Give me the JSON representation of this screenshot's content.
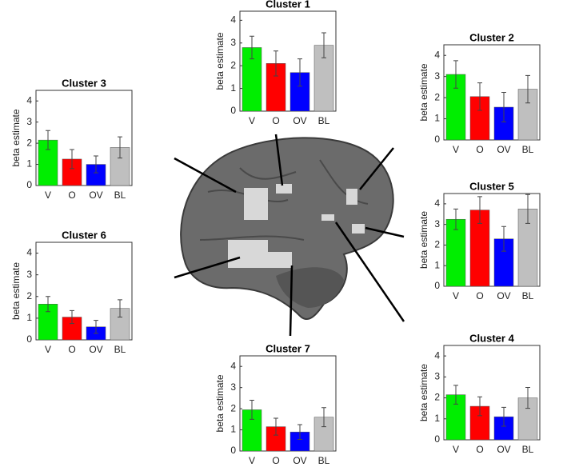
{
  "chart_data": [
    {
      "type": "bar",
      "title": "Cluster 1",
      "ylabel": "beta estimate",
      "categories": [
        "V",
        "O",
        "OV",
        "BL"
      ],
      "values": [
        2.8,
        2.1,
        1.7,
        2.9
      ],
      "errors": [
        0.5,
        0.55,
        0.6,
        0.55
      ],
      "colors": [
        "#00ee00",
        "#ff0000",
        "#0000ff",
        "#bfbfbf"
      ],
      "ylim": [
        0,
        4.4
      ],
      "yticks": [
        0,
        1,
        2,
        3,
        4
      ]
    },
    {
      "type": "bar",
      "title": "Cluster 2",
      "ylabel": "beta estimate",
      "categories": [
        "V",
        "O",
        "OV",
        "BL"
      ],
      "values": [
        3.1,
        2.05,
        1.55,
        2.4
      ],
      "errors": [
        0.65,
        0.65,
        0.7,
        0.65
      ],
      "colors": [
        "#00ee00",
        "#ff0000",
        "#0000ff",
        "#bfbfbf"
      ],
      "ylim": [
        0,
        4.5
      ],
      "yticks": [
        0,
        1,
        2,
        3,
        4
      ]
    },
    {
      "type": "bar",
      "title": "Cluster 3",
      "ylabel": "beta estimate",
      "categories": [
        "V",
        "O",
        "OV",
        "BL"
      ],
      "values": [
        2.15,
        1.25,
        1.0,
        1.8
      ],
      "errors": [
        0.45,
        0.45,
        0.4,
        0.5
      ],
      "colors": [
        "#00ee00",
        "#ff0000",
        "#0000ff",
        "#bfbfbf"
      ],
      "ylim": [
        0,
        4.5
      ],
      "yticks": [
        0,
        1,
        2,
        3,
        4
      ]
    },
    {
      "type": "bar",
      "title": "Cluster 6",
      "ylabel": "beta estimate",
      "categories": [
        "V",
        "O",
        "OV",
        "BL"
      ],
      "values": [
        1.65,
        1.05,
        0.6,
        1.45
      ],
      "errors": [
        0.35,
        0.3,
        0.3,
        0.4
      ],
      "colors": [
        "#00ee00",
        "#ff0000",
        "#0000ff",
        "#bfbfbf"
      ],
      "ylim": [
        0,
        4.5
      ],
      "yticks": [
        0,
        1,
        2,
        3,
        4
      ]
    },
    {
      "type": "bar",
      "title": "Cluster 5",
      "ylabel": "beta estimate",
      "categories": [
        "V",
        "O",
        "OV",
        "BL"
      ],
      "values": [
        3.25,
        3.7,
        2.3,
        3.75
      ],
      "errors": [
        0.5,
        0.65,
        0.6,
        0.7
      ],
      "colors": [
        "#00ee00",
        "#ff0000",
        "#0000ff",
        "#bfbfbf"
      ],
      "ylim": [
        0,
        4.5
      ],
      "yticks": [
        0,
        1,
        2,
        3,
        4
      ]
    },
    {
      "type": "bar",
      "title": "Cluster 7",
      "ylabel": "beta estimate",
      "categories": [
        "V",
        "O",
        "OV",
        "BL"
      ],
      "values": [
        1.95,
        1.15,
        0.9,
        1.6
      ],
      "errors": [
        0.45,
        0.4,
        0.35,
        0.45
      ],
      "colors": [
        "#00ee00",
        "#ff0000",
        "#0000ff",
        "#bfbfbf"
      ],
      "ylim": [
        0,
        4.5
      ],
      "yticks": [
        0,
        1,
        2,
        3,
        4
      ]
    },
    {
      "type": "bar",
      "title": "Cluster 4",
      "ylabel": "beta estimate",
      "categories": [
        "V",
        "O",
        "OV",
        "BL"
      ],
      "values": [
        2.15,
        1.6,
        1.1,
        2.0
      ],
      "errors": [
        0.45,
        0.45,
        0.45,
        0.5
      ],
      "colors": [
        "#00ee00",
        "#ff0000",
        "#0000ff",
        "#bfbfbf"
      ],
      "ylim": [
        0,
        4.5
      ],
      "yticks": [
        0,
        1,
        2,
        3,
        4
      ]
    }
  ]
}
